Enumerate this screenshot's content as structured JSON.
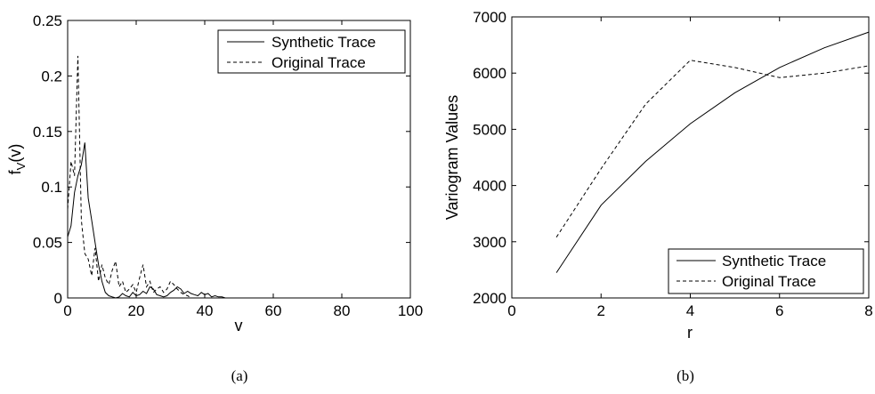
{
  "chart_data": [
    {
      "type": "line",
      "caption": "(a)",
      "xlabel": "v",
      "ylabel_main": "f",
      "ylabel_sub": "V",
      "ylabel_tail": "(v)",
      "xlim": [
        0,
        100
      ],
      "ylim": [
        0,
        0.25
      ],
      "xticks": [
        "0",
        "20",
        "40",
        "60",
        "80",
        "100"
      ],
      "yticks": [
        "0",
        "0.05",
        "0.1",
        "0.15",
        "0.2",
        "0.25"
      ],
      "legend_position": "top-right",
      "grid": false,
      "series": [
        {
          "name": "Synthetic Trace",
          "style": "solid",
          "x": [
            0,
            1,
            2,
            3,
            4,
            5,
            6,
            7,
            8,
            9,
            10,
            11,
            12,
            13,
            14,
            15,
            16,
            17,
            18,
            19,
            20,
            21,
            22,
            23,
            24,
            25,
            26,
            27,
            28,
            29,
            30,
            31,
            32,
            33,
            34,
            35,
            36,
            37,
            38,
            39,
            40,
            41,
            42,
            43,
            44,
            45,
            46,
            47
          ],
          "y": [
            0.055,
            0.065,
            0.095,
            0.11,
            0.12,
            0.14,
            0.09,
            0.07,
            0.05,
            0.03,
            0.015,
            0.005,
            0.002,
            0.001,
            0.0,
            0.001,
            0.004,
            0.002,
            0.001,
            0.005,
            0.002,
            0.003,
            0.006,
            0.004,
            0.01,
            0.008,
            0.003,
            0.002,
            0.001,
            0.002,
            0.005,
            0.007,
            0.01,
            0.008,
            0.004,
            0.006,
            0.004,
            0.003,
            0.002,
            0.005,
            0.003,
            0.004,
            0.001,
            0.002,
            0.001,
            0.001,
            0.0,
            0.0
          ]
        },
        {
          "name": "Original Trace",
          "style": "dashed",
          "x": [
            0,
            1,
            2,
            3,
            4,
            5,
            6,
            7,
            8,
            9,
            10,
            11,
            12,
            13,
            14,
            15,
            16,
            17,
            18,
            19,
            20,
            21,
            22,
            23,
            24,
            25,
            26,
            27,
            28,
            29,
            30,
            31,
            32,
            33,
            34,
            35,
            36
          ],
          "y": [
            0.08,
            0.123,
            0.11,
            0.218,
            0.07,
            0.04,
            0.035,
            0.02,
            0.045,
            0.015,
            0.03,
            0.018,
            0.012,
            0.025,
            0.033,
            0.01,
            0.015,
            0.005,
            0.008,
            0.012,
            0.005,
            0.018,
            0.03,
            0.01,
            0.015,
            0.005,
            0.008,
            0.01,
            0.005,
            0.008,
            0.015,
            0.012,
            0.008,
            0.005,
            0.003,
            0.002,
            0.0
          ]
        }
      ]
    },
    {
      "type": "line",
      "caption": "(b)",
      "xlabel": "r",
      "ylabel": "Variogram Values",
      "xlim": [
        0,
        8
      ],
      "ylim": [
        2000,
        7000
      ],
      "xticks": [
        "0",
        "2",
        "4",
        "6",
        "8"
      ],
      "yticks": [
        "2000",
        "3000",
        "4000",
        "5000",
        "6000",
        "7000"
      ],
      "legend_position": "bottom-right",
      "grid": false,
      "series": [
        {
          "name": "Synthetic Trace",
          "style": "solid",
          "x": [
            1,
            2,
            3,
            4,
            5,
            6,
            7,
            8
          ],
          "y": [
            2450,
            3650,
            4430,
            5100,
            5650,
            6100,
            6450,
            6730
          ]
        },
        {
          "name": "Original Trace",
          "style": "dashed",
          "x": [
            1,
            2,
            3,
            4,
            5,
            6,
            7,
            8
          ],
          "y": [
            3080,
            4300,
            5450,
            6230,
            6100,
            5920,
            6000,
            6130
          ]
        }
      ]
    }
  ]
}
